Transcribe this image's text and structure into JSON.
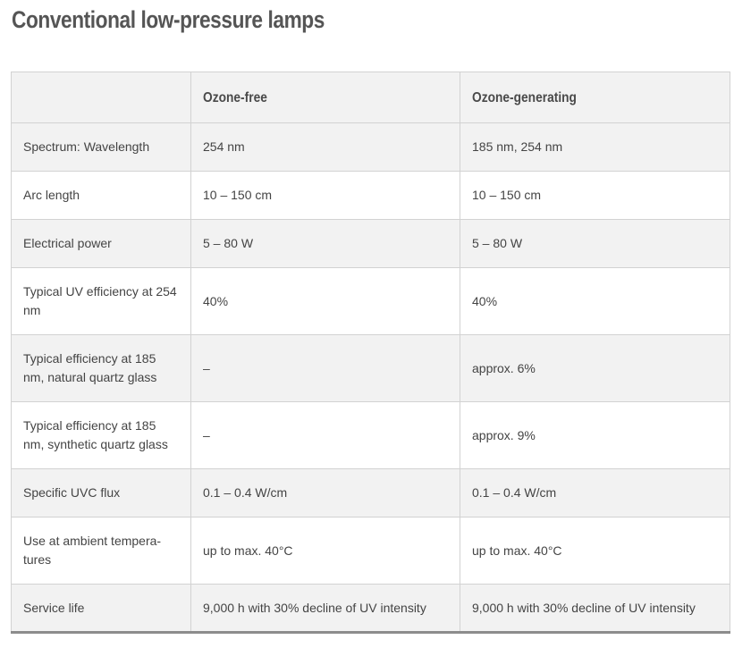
{
  "title": "Conventional low-pressure lamps",
  "table": {
    "headers": [
      "",
      "Ozone-free",
      "Ozone-generating"
    ],
    "rows": [
      [
        "Spectrum: Wavelength",
        "254 nm",
        "185 nm, 254 nm"
      ],
      [
        "Arc length",
        "10 – 150 cm",
        "10 – 150 cm"
      ],
      [
        "Electrical power",
        "5 – 80 W",
        "5 – 80 W"
      ],
      [
        "Typical UV efficiency at 254 nm",
        "40%",
        "40%"
      ],
      [
        "Typical efficiency at 185 nm, natural quartz glass",
        "–",
        "approx. 6%"
      ],
      [
        "Typical efficiency at 185 nm, synthetic quartz glass",
        "–",
        "approx. 9%"
      ],
      [
        "Specific UVC flux",
        "0.1 – 0.4 W/cm",
        "0.1 – 0.4 W/cm"
      ],
      [
        "Use at ambient tempera-tures",
        "up to max. 40°C",
        "up to max. 40°C"
      ],
      [
        "Service life",
        "9,000 h with 30% decline of UV intensity",
        "9,000 h with 30% decline of UV intensity"
      ]
    ]
  },
  "colors": {
    "header_background": "#f2f2f2",
    "shaded_row_background": "#f2f2f2",
    "plain_row_background": "#ffffff",
    "border": "#d2d2d2",
    "bottom_rule": "#8c8c8c",
    "text": "#444444"
  }
}
